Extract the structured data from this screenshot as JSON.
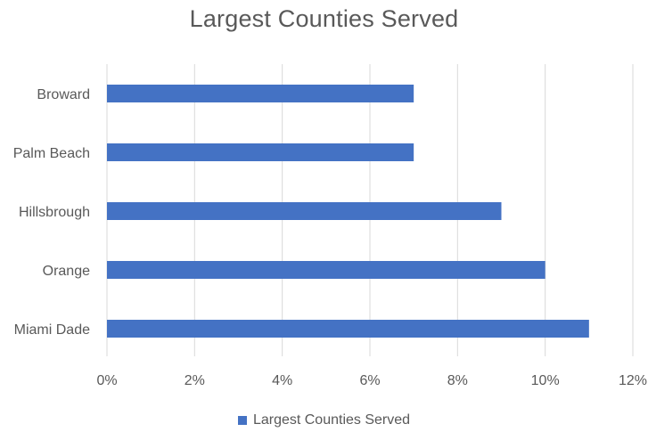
{
  "chart_data": {
    "type": "bar",
    "orientation": "horizontal",
    "title": "Largest Counties Served",
    "categories": [
      "Broward",
      "Palm Beach",
      "Hillsbrough",
      "Orange",
      "Miami Dade"
    ],
    "series": [
      {
        "name": "Largest Counties Served",
        "values": [
          7,
          7,
          9,
          10,
          11
        ],
        "color": "#4472c4"
      }
    ],
    "value_unit": "%",
    "xlim": [
      0,
      12
    ],
    "x_ticks": [
      0,
      2,
      4,
      6,
      8,
      10,
      12
    ],
    "x_tick_labels": [
      "0%",
      "2%",
      "4%",
      "6%",
      "8%",
      "10%",
      "12%"
    ],
    "xlabel": "",
    "ylabel": "",
    "grid": "vertical",
    "legend": "bottom"
  }
}
